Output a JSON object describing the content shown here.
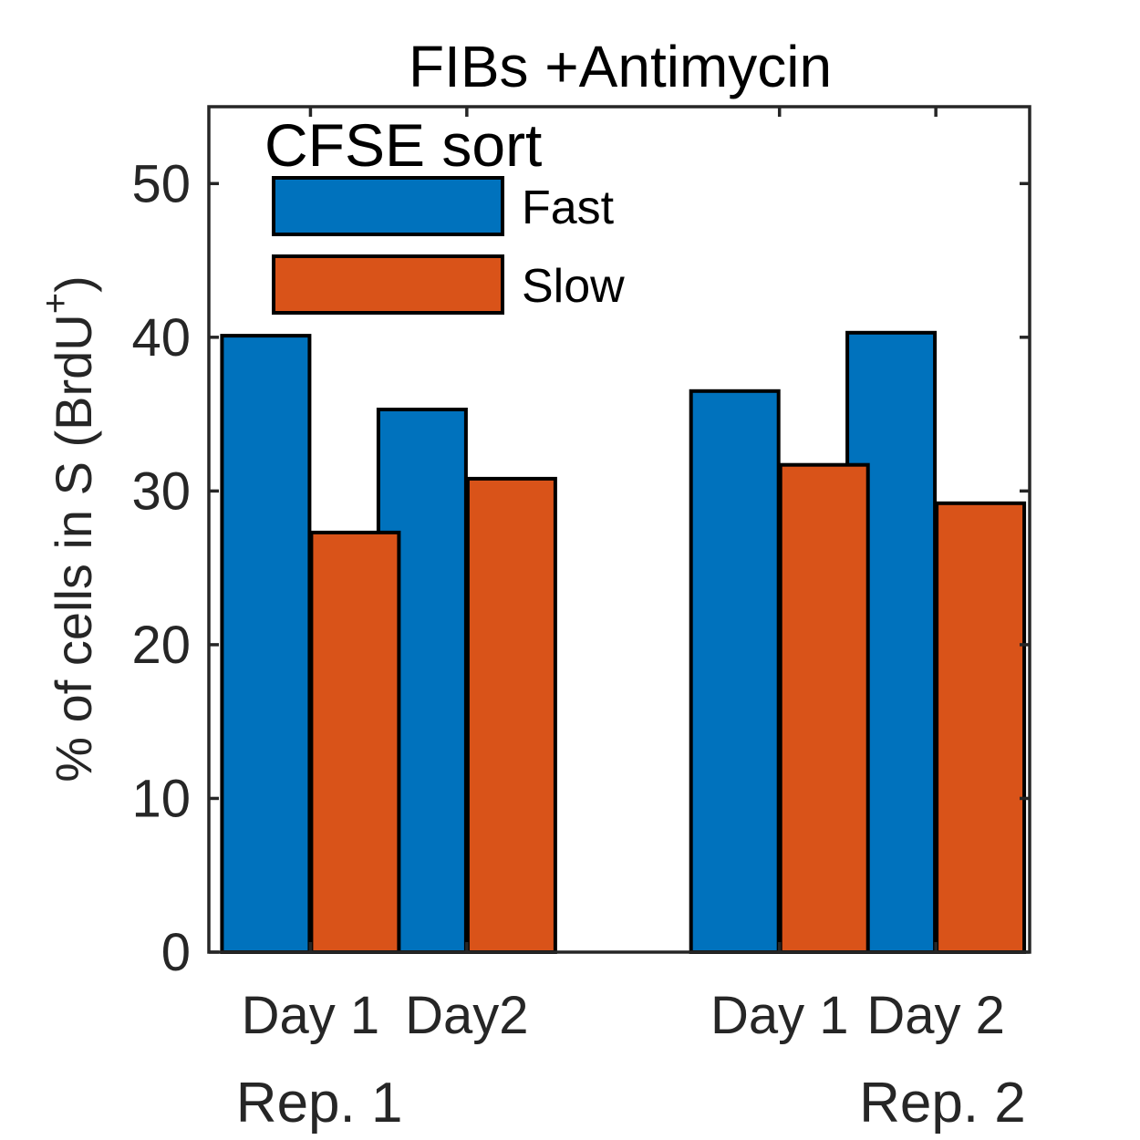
{
  "chart_data": {
    "type": "bar",
    "title": "FIBs +Antimycin",
    "ylabel": "% of cells in S   (BrdU",
    "ylabel_superscript": "+",
    "ylabel_close": ")",
    "ylim": [
      0,
      55
    ],
    "yticks": [
      0,
      10,
      20,
      30,
      40,
      50
    ],
    "grid": false,
    "legend": {
      "title": "CFSE sort",
      "placement": "top-left"
    },
    "categories": [
      "Day 1",
      "Day2",
      "Day 1",
      "Day 2"
    ],
    "groups": [
      {
        "label": "Rep. 1",
        "category_indices": [
          0,
          1
        ]
      },
      {
        "label": "Rep. 2",
        "category_indices": [
          2,
          3
        ]
      }
    ],
    "series": [
      {
        "name": "Fast",
        "color": "#0072BD",
        "values": [
          40.1,
          35.3,
          36.5,
          40.3
        ]
      },
      {
        "name": "Slow",
        "color": "#D95319",
        "values": [
          27.3,
          30.8,
          31.7,
          29.2
        ]
      }
    ]
  }
}
